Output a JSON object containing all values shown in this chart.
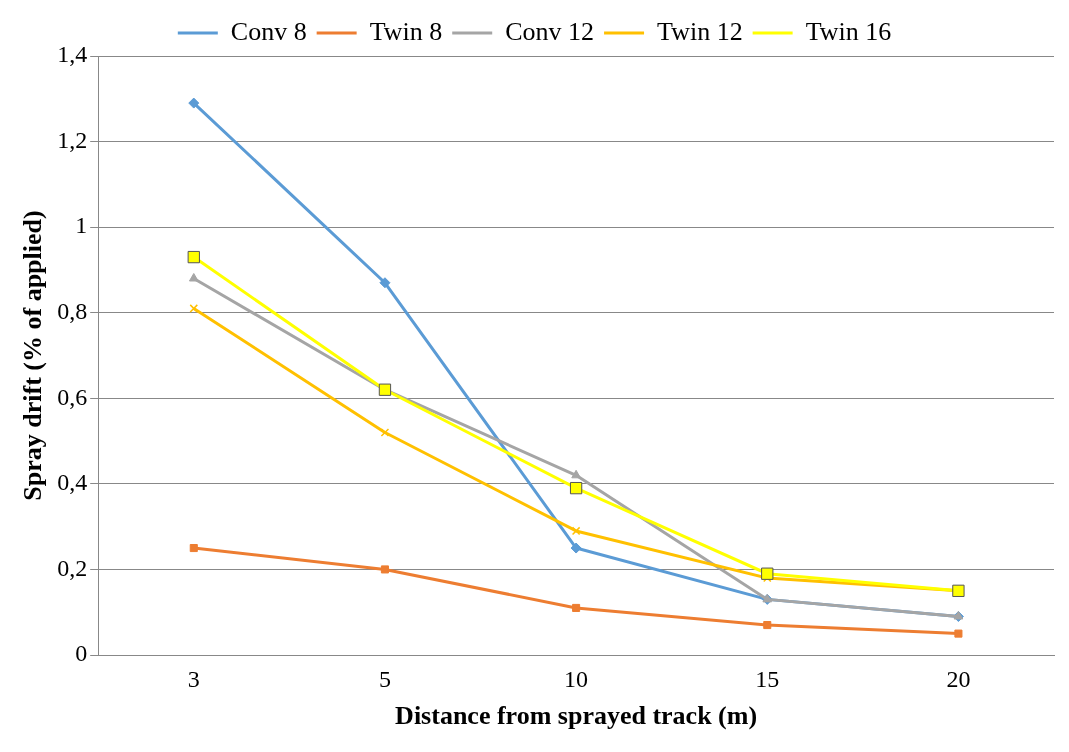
{
  "chart_data": {
    "type": "line",
    "xlabel": "Distance from sprayed track (m)",
    "ylabel": "Spray drift (% of applied)",
    "categories": [
      "3",
      "5",
      "10",
      "15",
      "20"
    ],
    "series": [
      {
        "name": "Conv 8",
        "color": "#5b9bd5",
        "marker": "diamond",
        "values": [
          1.29,
          0.87,
          0.25,
          0.13,
          0.09
        ]
      },
      {
        "name": "Twin 8",
        "color": "#ed7d31",
        "marker": "square",
        "values": [
          0.25,
          0.2,
          0.11,
          0.07,
          0.05
        ]
      },
      {
        "name": "Conv 12",
        "color": "#a5a5a5",
        "marker": "triangle",
        "values": [
          0.88,
          0.62,
          0.42,
          0.13,
          0.09
        ]
      },
      {
        "name": "Twin 12",
        "color": "#ffc000",
        "marker": "cross",
        "values": [
          0.81,
          0.52,
          0.29,
          0.18,
          0.15
        ]
      },
      {
        "name": "Twin 16",
        "color": "#ffff00",
        "marker": "square",
        "values": [
          0.93,
          0.62,
          0.39,
          0.19,
          0.15
        ]
      }
    ],
    "ylim": [
      0,
      1.4
    ],
    "yticks": [
      0,
      {
        "value": 0.2,
        "label": "0,2"
      },
      {
        "value": 0.4,
        "label": "0,4"
      },
      {
        "value": 0.6,
        "label": "0,6"
      },
      {
        "value": 0.8,
        "label": "0,8"
      },
      1,
      {
        "value": 1.2,
        "label": "1,2"
      },
      {
        "value": 1.4,
        "label": "1,4"
      }
    ],
    "grid": "y",
    "legend": "top",
    "line_style": "solid"
  }
}
